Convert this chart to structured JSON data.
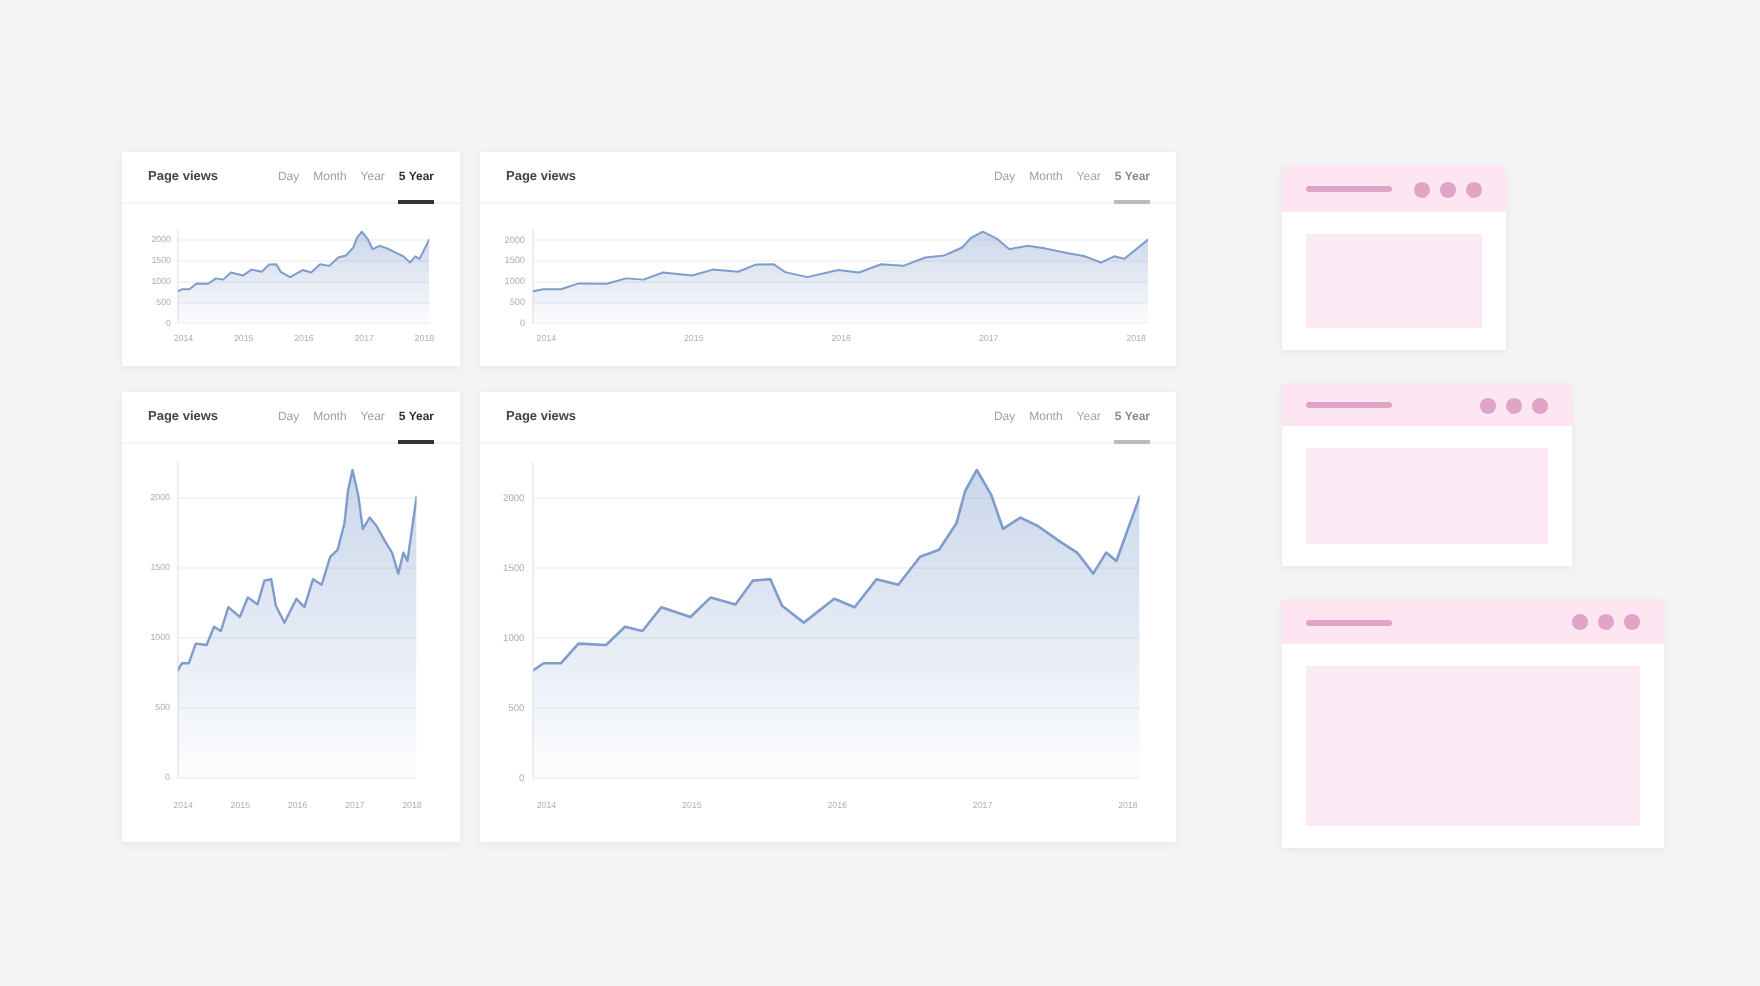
{
  "chart_data": [
    {
      "type": "area",
      "title": "Page views",
      "annotations": [
        "Day",
        "Month",
        "Year",
        "5 Year"
      ],
      "x": [
        2013.91,
        2013.98,
        2014.1,
        2014.22,
        2014.41,
        2014.54,
        2014.66,
        2014.79,
        2014.99,
        2015.13,
        2015.3,
        2015.42,
        2015.54,
        2015.62,
        2015.77,
        2015.98,
        2016.12,
        2016.27,
        2016.42,
        2016.57,
        2016.7,
        2016.82,
        2016.88,
        2016.96,
        2017.06,
        2017.14,
        2017.26,
        2017.38,
        2017.53,
        2017.65,
        2017.71,
        2017.76,
        2017.85,
        2017.92,
        2018.08
      ],
      "values": [
        770,
        820,
        820,
        960,
        950,
        1080,
        1050,
        1220,
        1150,
        1290,
        1240,
        1410,
        1420,
        1230,
        1110,
        1280,
        1220,
        1420,
        1380,
        1580,
        1630,
        1820,
        2050,
        2200,
        2020,
        1780,
        1860,
        1800,
        1690,
        1610,
        1530,
        1460,
        1610,
        1550,
        2010
      ],
      "color": "#7f9ccc",
      "xlim": [
        2013.91,
        2018.08
      ],
      "xticks": [
        2014,
        2015,
        2016,
        2017,
        2018
      ],
      "ylim": [
        0,
        2250
      ],
      "yticks": [
        0,
        500,
        1000,
        1500,
        2000
      ],
      "grid": "y",
      "marker": "none"
    },
    {
      "type": "area",
      "title": "Page views",
      "annotations": [
        "Day",
        "Month",
        "Year",
        "5 Year"
      ],
      "x": [
        2013.91,
        2013.98,
        2014.1,
        2014.22,
        2014.41,
        2014.54,
        2014.66,
        2014.79,
        2014.99,
        2015.13,
        2015.3,
        2015.42,
        2015.54,
        2015.62,
        2015.77,
        2015.98,
        2016.12,
        2016.27,
        2016.42,
        2016.57,
        2016.7,
        2016.82,
        2016.88,
        2016.96,
        2017.06,
        2017.14,
        2017.26,
        2017.38,
        2017.53,
        2017.65,
        2017.71,
        2017.76,
        2017.85,
        2017.92,
        2018.08
      ],
      "values": [
        770,
        820,
        820,
        960,
        950,
        1080,
        1050,
        1220,
        1150,
        1290,
        1240,
        1410,
        1420,
        1230,
        1110,
        1280,
        1220,
        1420,
        1380,
        1580,
        1630,
        1820,
        2050,
        2200,
        2020,
        1780,
        1860,
        1800,
        1690,
        1610,
        1530,
        1460,
        1610,
        1550,
        2010
      ],
      "color": "#7f9ccc",
      "xlim": [
        2013.91,
        2018.08
      ],
      "xticks": [
        2014,
        2015,
        2016,
        2017,
        2018
      ],
      "ylim": [
        0,
        2250
      ],
      "yticks": [
        0,
        500,
        1000,
        1500,
        2000
      ],
      "grid": "y",
      "marker": "none"
    },
    {
      "type": "area",
      "title": "Page views",
      "annotations": [
        "Day",
        "Month",
        "Year",
        "5 Year"
      ],
      "x": [
        2013.91,
        2013.98,
        2014.1,
        2014.22,
        2014.41,
        2014.54,
        2014.66,
        2014.79,
        2014.99,
        2015.13,
        2015.3,
        2015.42,
        2015.54,
        2015.62,
        2015.77,
        2015.98,
        2016.12,
        2016.27,
        2016.42,
        2016.57,
        2016.7,
        2016.82,
        2016.88,
        2016.96,
        2017.06,
        2017.14,
        2017.26,
        2017.38,
        2017.53,
        2017.65,
        2017.71,
        2017.76,
        2017.85,
        2017.92,
        2018.08
      ],
      "values": [
        770,
        820,
        820,
        960,
        950,
        1080,
        1050,
        1220,
        1150,
        1290,
        1240,
        1410,
        1420,
        1230,
        1110,
        1280,
        1220,
        1420,
        1380,
        1580,
        1630,
        1820,
        2050,
        2200,
        2020,
        1780,
        1860,
        1800,
        1690,
        1610,
        1530,
        1460,
        1610,
        1550,
        2010
      ],
      "color": "#7f9ccc",
      "xlim": [
        2013.91,
        2018.08
      ],
      "xticks": [
        2014,
        2015,
        2016,
        2017,
        2018
      ],
      "ylim": [
        0,
        2250
      ],
      "yticks": [
        0,
        500,
        1000,
        1500,
        2000
      ],
      "grid": "y",
      "marker": "none"
    },
    {
      "type": "area",
      "title": "Page views",
      "annotations": [
        "Day",
        "Month",
        "Year",
        "5 Year"
      ],
      "x": [
        2013.91,
        2013.98,
        2014.1,
        2014.22,
        2014.41,
        2014.54,
        2014.66,
        2014.79,
        2014.99,
        2015.13,
        2015.3,
        2015.42,
        2015.54,
        2015.62,
        2015.77,
        2015.98,
        2016.12,
        2016.27,
        2016.42,
        2016.57,
        2016.7,
        2016.82,
        2016.88,
        2016.96,
        2017.06,
        2017.14,
        2017.26,
        2017.38,
        2017.53,
        2017.65,
        2017.71,
        2017.76,
        2017.85,
        2017.92,
        2018.08
      ],
      "values": [
        770,
        820,
        820,
        960,
        950,
        1080,
        1050,
        1220,
        1150,
        1290,
        1240,
        1410,
        1420,
        1230,
        1110,
        1280,
        1220,
        1420,
        1380,
        1580,
        1630,
        1820,
        2050,
        2200,
        2020,
        1780,
        1860,
        1800,
        1690,
        1610,
        1530,
        1460,
        1610,
        1550,
        2010
      ],
      "color": "#7f9ccc",
      "xlim": [
        2013.91,
        2018.08
      ],
      "xticks": [
        2014,
        2015,
        2016,
        2017,
        2018
      ],
      "ylim": [
        0,
        2250
      ],
      "yticks": [
        0,
        500,
        1000,
        1500,
        2000
      ],
      "grid": "y",
      "marker": "none"
    }
  ]
}
